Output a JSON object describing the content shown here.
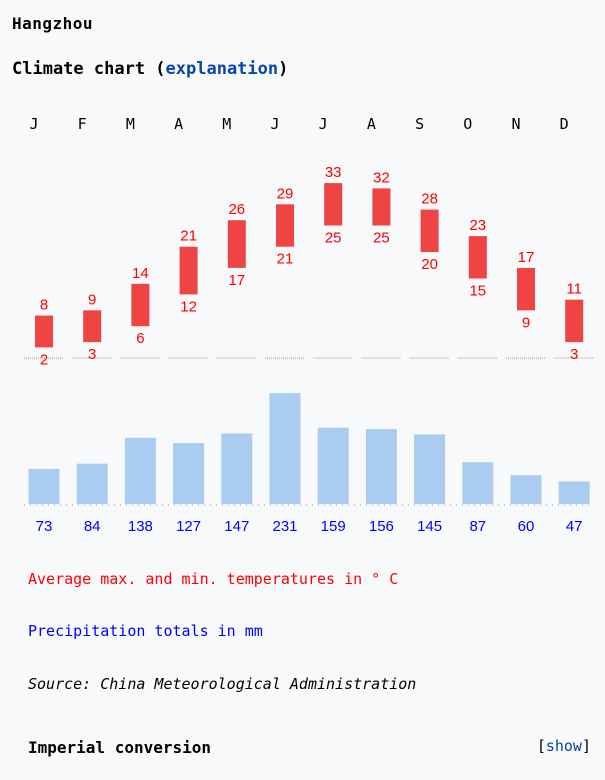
{
  "header": {
    "city": "Hangzhou",
    "title_prefix": "Climate chart (",
    "title_link": "explanation",
    "title_suffix": ")"
  },
  "legend": {
    "temperature": "Average max. and min. temperatures in ° C",
    "precipitation": "Precipitation totals in mm",
    "source": "Source: China Meteorological Administration"
  },
  "footer": {
    "imperial_label": "Imperial conversion",
    "show_prefix": "[",
    "show_link": "show",
    "show_suffix": "]"
  },
  "colors": {
    "temperature": "#ee4444",
    "temperature_text": "#ff0000",
    "precipitation": "#aaccf0",
    "precipitation_text": "#0000ff",
    "zero_line": "#cc8866"
  },
  "chart_data": {
    "type": "bar",
    "categories": [
      "J",
      "F",
      "M",
      "A",
      "M",
      "J",
      "J",
      "A",
      "S",
      "O",
      "N",
      "D"
    ],
    "series": [
      {
        "name": "max",
        "values": [
          8,
          9,
          14,
          21,
          26,
          29,
          33,
          32,
          28,
          23,
          17,
          11
        ]
      },
      {
        "name": "min",
        "values": [
          2,
          3,
          6,
          12,
          17,
          21,
          25,
          25,
          20,
          15,
          9,
          3
        ]
      },
      {
        "name": "precipitation",
        "values": [
          73,
          84,
          138,
          127,
          147,
          231,
          159,
          156,
          145,
          87,
          60,
          47
        ]
      }
    ]
  }
}
